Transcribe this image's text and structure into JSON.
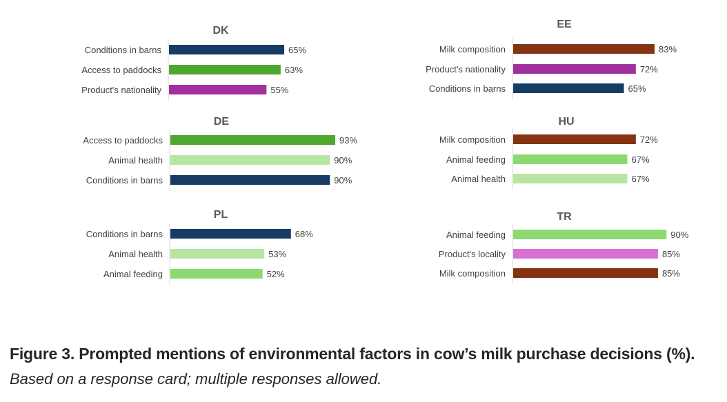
{
  "colors": {
    "Conditions in barns": "#173c64",
    "Access to paddocks": "#4ea72e",
    "Product's nationality": "#a1309e",
    "Milk composition": "#843410",
    "Animal health": "#b7e6a2",
    "Animal feeding": "#8cd972",
    "Product's locality": "#d870d1"
  },
  "chart_data": [
    {
      "type": "bar",
      "title": "DK",
      "orientation": "horizontal",
      "xlim": [
        0,
        100
      ],
      "categories": [
        "Conditions in barns",
        "Access to paddocks",
        "Product's nationality"
      ],
      "values": [
        65,
        63,
        55
      ],
      "labels": [
        "65%",
        "63%",
        "55%"
      ]
    },
    {
      "type": "bar",
      "title": "DE",
      "orientation": "horizontal",
      "xlim": [
        0,
        100
      ],
      "categories": [
        "Access to paddocks",
        "Animal health",
        "Conditions in barns"
      ],
      "values": [
        93,
        90,
        90
      ],
      "labels": [
        "93%",
        "90%",
        "90%"
      ]
    },
    {
      "type": "bar",
      "title": "PL",
      "orientation": "horizontal",
      "xlim": [
        0,
        100
      ],
      "categories": [
        "Conditions in barns",
        "Animal health",
        "Animal feeding"
      ],
      "values": [
        68,
        53,
        52
      ],
      "labels": [
        "68%",
        "53%",
        "52%"
      ]
    },
    {
      "type": "bar",
      "title": "EE",
      "orientation": "horizontal",
      "xlim": [
        0,
        100
      ],
      "categories": [
        "Milk composition",
        "Product's nationality",
        "Conditions in barns"
      ],
      "values": [
        83,
        72,
        65
      ],
      "labels": [
        "83%",
        "72%",
        "65%"
      ]
    },
    {
      "type": "bar",
      "title": "HU",
      "orientation": "horizontal",
      "xlim": [
        0,
        100
      ],
      "categories": [
        "Milk composition",
        "Animal feeding",
        "Animal health"
      ],
      "values": [
        72,
        67,
        67
      ],
      "labels": [
        "72%",
        "67%",
        "67%"
      ]
    },
    {
      "type": "bar",
      "title": "TR",
      "orientation": "horizontal",
      "xlim": [
        0,
        100
      ],
      "categories": [
        "Animal feeding",
        "Product's locality",
        "Milk composition"
      ],
      "values": [
        90,
        85,
        85
      ],
      "labels": [
        "90%",
        "85%",
        "85%"
      ]
    }
  ],
  "caption": {
    "title": "Figure 3. Prompted mentions of environmental factors in cow’s milk purchase decisions (%).",
    "subtitle": "Based on a response card; multiple responses allowed."
  }
}
